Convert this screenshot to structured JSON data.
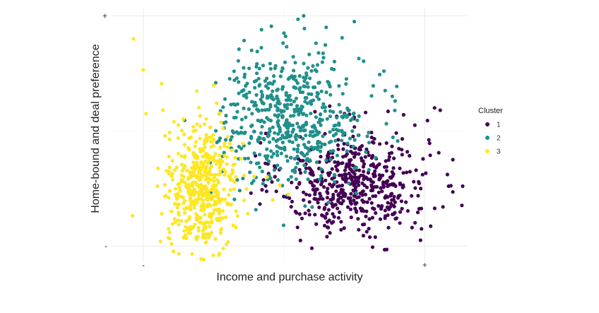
{
  "chart_data": {
    "type": "scatter",
    "title": "",
    "xlabel": "Income and purchase activity",
    "ylabel": "Home-bound and deal preference",
    "x_ticks": [
      {
        "value": -1,
        "label": "-"
      },
      {
        "value": 1,
        "label": "+"
      }
    ],
    "y_ticks": [
      {
        "value": -1,
        "label": "-"
      },
      {
        "value": 1,
        "label": "+"
      }
    ],
    "xlim": [
      -1.23,
      1.3
    ],
    "ylim": [
      -1.14,
      1.07
    ],
    "grid": true,
    "legend": {
      "title": "Cluster",
      "placement": "right",
      "entries": [
        {
          "label": "1",
          "color": "#440154"
        },
        {
          "label": "2",
          "color": "#21908C"
        },
        {
          "label": "3",
          "color": "#FDE725"
        }
      ]
    },
    "series": [
      {
        "label": "1",
        "color": "#440154",
        "cloud": {
          "center": [
            0.5,
            -0.45
          ],
          "spread": [
            0.26,
            0.22
          ],
          "count": 520
        },
        "points": [
          [
            1.07,
            0.2
          ],
          [
            1.11,
            0.18
          ],
          [
            0.93,
            0.05
          ],
          [
            1.02,
            0.09
          ],
          [
            1.2,
            -0.53
          ],
          [
            1.17,
            -0.48
          ],
          [
            0.85,
            0.14
          ],
          [
            0.74,
            0.17
          ],
          [
            1.1,
            -0.19
          ],
          [
            1.2,
            -0.25
          ],
          [
            0.63,
            -1.01
          ],
          [
            0.73,
            -1.03
          ],
          [
            0.91,
            -0.84
          ],
          [
            0.97,
            -0.95
          ],
          [
            1.13,
            -0.66
          ],
          [
            1.27,
            -0.48
          ],
          [
            0.58,
            0.16
          ],
          [
            0.43,
            0.15
          ]
        ]
      },
      {
        "label": "2",
        "color": "#21908C",
        "cloud": {
          "center": [
            0.05,
            0.1
          ],
          "spread": [
            0.26,
            0.28
          ],
          "count": 560
        },
        "points": [
          [
            0.1,
            0.97
          ],
          [
            0.14,
            1.0
          ],
          [
            0.5,
            0.95
          ],
          [
            -0.09,
            0.91
          ],
          [
            -0.16,
            0.88
          ],
          [
            0.71,
            0.52
          ],
          [
            0.77,
            0.3
          ],
          [
            0.79,
            0.26
          ],
          [
            0.68,
            0.49
          ],
          [
            -0.32,
            0.71
          ],
          [
            -0.23,
            0.7
          ],
          [
            -0.19,
            0.69
          ],
          [
            0.0,
            0.85
          ],
          [
            0.3,
            0.9
          ]
        ]
      },
      {
        "label": "3",
        "color": "#FDE725",
        "cloud": {
          "center": [
            -0.58,
            -0.5
          ],
          "spread": [
            0.12,
            0.27
          ],
          "count": 500
        },
        "points": [
          [
            -1.07,
            0.8
          ],
          [
            -1.0,
            0.53
          ],
          [
            -0.87,
            0.41
          ],
          [
            -0.98,
            0.15
          ],
          [
            -0.86,
            0.18
          ],
          [
            -0.9,
            -0.48
          ],
          [
            -0.82,
            -0.35
          ],
          [
            -0.8,
            -0.7
          ],
          [
            -0.82,
            -0.58
          ],
          [
            -0.12,
            -0.4
          ],
          [
            -0.03,
            -0.47
          ],
          [
            0.03,
            -0.55
          ],
          [
            -0.08,
            -0.6
          ],
          [
            -0.36,
            -0.82
          ],
          [
            -0.45,
            -0.86
          ]
        ]
      }
    ]
  }
}
